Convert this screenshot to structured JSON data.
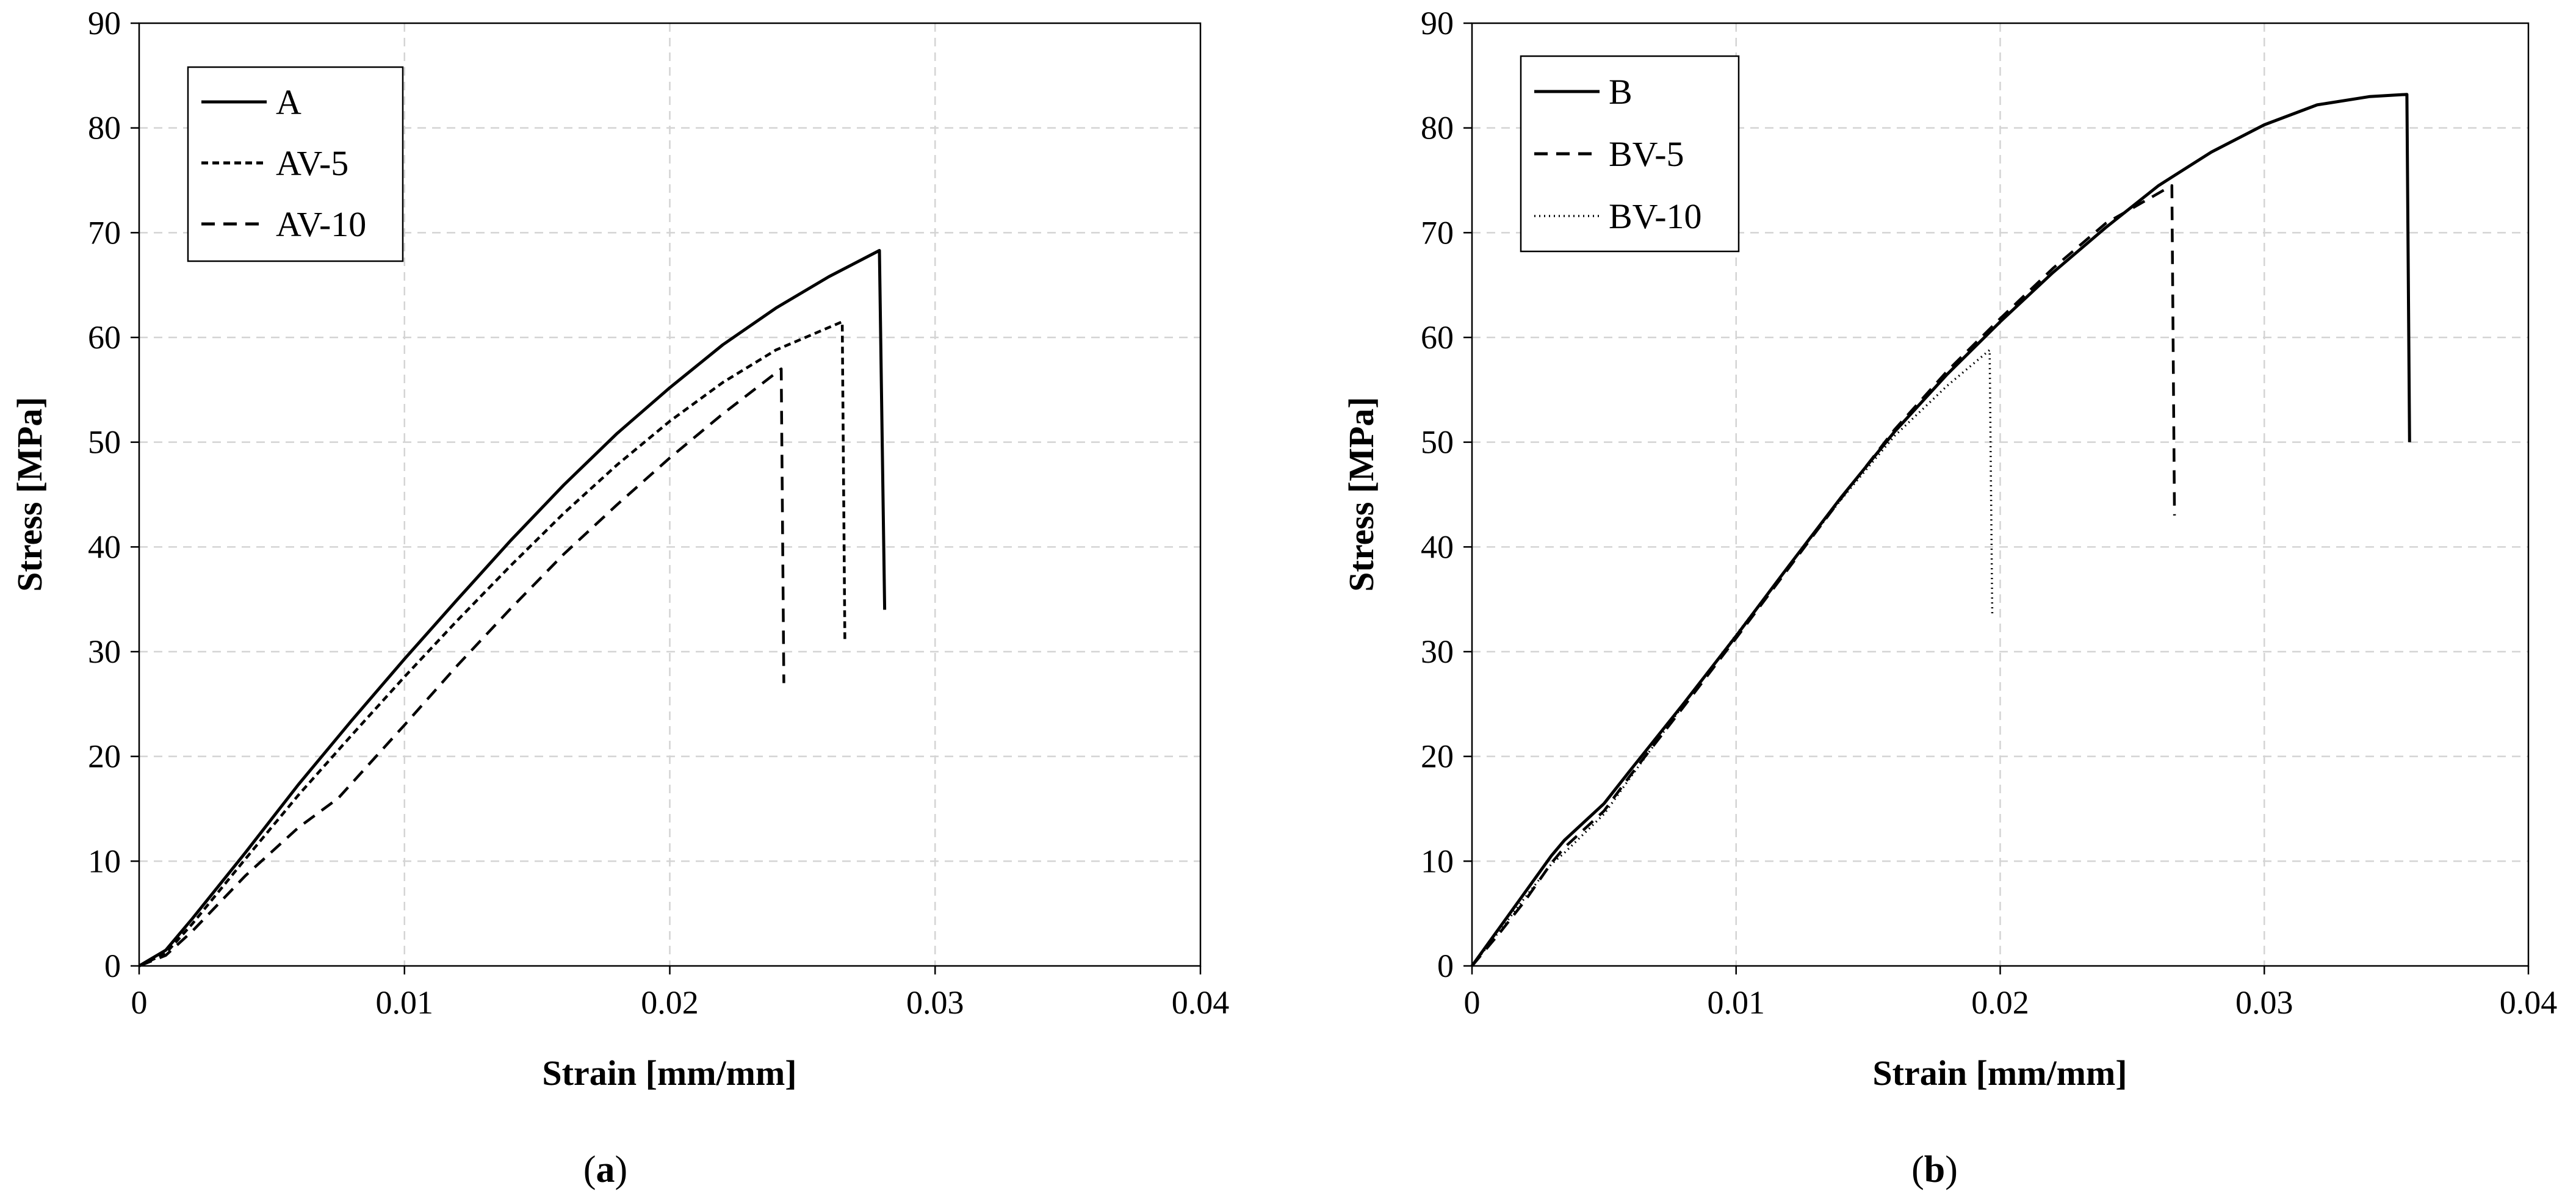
{
  "chart_data": [
    {
      "type": "line",
      "panel_label": {
        "open": "(",
        "letter": "a",
        "close": ")"
      },
      "xlabel": "Strain [mm/mm]",
      "ylabel": "Stress [MPa]",
      "xlim": [
        0,
        0.04
      ],
      "ylim": [
        0,
        90
      ],
      "x_ticks": [
        "0",
        "0.01",
        "0.02",
        "0.03",
        "0.04"
      ],
      "y_ticks": [
        "0",
        "10",
        "20",
        "30",
        "40",
        "50",
        "60",
        "70",
        "80",
        "90"
      ],
      "grid": true,
      "legend_position": "top-left",
      "series": [
        {
          "name": "A",
          "style": "solid",
          "x": [
            0,
            0.001,
            0.002,
            0.004,
            0.006,
            0.008,
            0.01,
            0.012,
            0.014,
            0.016,
            0.018,
            0.02,
            0.022,
            0.024,
            0.026,
            0.0279,
            0.0281
          ],
          "y": [
            0,
            1.5,
            4.5,
            10.8,
            17.3,
            23.4,
            29.3,
            35.0,
            40.6,
            45.9,
            50.8,
            55.2,
            59.3,
            62.8,
            65.8,
            68.3,
            34
          ]
        },
        {
          "name": "AV-5",
          "style": "short-dash",
          "x": [
            0,
            0.001,
            0.002,
            0.004,
            0.006,
            0.008,
            0.01,
            0.012,
            0.014,
            0.016,
            0.018,
            0.02,
            0.022,
            0.024,
            0.0265,
            0.0266
          ],
          "y": [
            0,
            1.2,
            4.0,
            10.2,
            16.3,
            22.0,
            27.6,
            33.0,
            38.2,
            43.2,
            47.8,
            52.0,
            55.7,
            58.8,
            61.5,
            31
          ]
        },
        {
          "name": "AV-10",
          "style": "long-dash",
          "x": [
            0,
            0.001,
            0.002,
            0.004,
            0.006,
            0.0075,
            0.01,
            0.012,
            0.014,
            0.016,
            0.018,
            0.02,
            0.022,
            0.0242,
            0.0243
          ],
          "y": [
            0,
            1.0,
            3.3,
            8.6,
            13.2,
            16.0,
            23.0,
            28.7,
            34.1,
            39.3,
            44.0,
            48.5,
            52.7,
            57.0,
            27
          ]
        }
      ]
    },
    {
      "type": "line",
      "panel_label": {
        "open": "(",
        "letter": "b",
        "close": ")"
      },
      "xlabel": "Strain [mm/mm]",
      "ylabel": "Stress [MPa]",
      "xlim": [
        0,
        0.04
      ],
      "ylim": [
        0,
        90
      ],
      "x_ticks": [
        "0",
        "0.01",
        "0.02",
        "0.03",
        "0.04"
      ],
      "y_ticks": [
        "0",
        "10",
        "20",
        "30",
        "40",
        "50",
        "60",
        "70",
        "80",
        "90"
      ],
      "grid": true,
      "legend_position": "top-left",
      "series": [
        {
          "name": "B",
          "style": "solid",
          "x": [
            0,
            0.001,
            0.002,
            0.003,
            0.0035,
            0.005,
            0.006,
            0.008,
            0.01,
            0.012,
            0.014,
            0.016,
            0.018,
            0.02,
            0.022,
            0.024,
            0.026,
            0.028,
            0.03,
            0.032,
            0.034,
            0.0354,
            0.0355
          ],
          "y": [
            0,
            3.5,
            7.0,
            10.5,
            12.0,
            15.5,
            18.7,
            25.0,
            31.5,
            38.2,
            44.8,
            51.0,
            56.5,
            61.5,
            66.2,
            70.5,
            74.5,
            77.7,
            80.3,
            82.2,
            83.0,
            83.2,
            50
          ]
        },
        {
          "name": "BV-5",
          "style": "long-dash",
          "x": [
            0,
            0.001,
            0.002,
            0.003,
            0.0035,
            0.005,
            0.006,
            0.008,
            0.01,
            0.012,
            0.014,
            0.016,
            0.018,
            0.02,
            0.022,
            0.024,
            0.0265,
            0.0266
          ],
          "y": [
            0,
            3.0,
            6.2,
            9.8,
            11.3,
            14.8,
            18.2,
            24.7,
            31.3,
            38.0,
            44.7,
            51.2,
            56.8,
            61.8,
            66.6,
            70.9,
            74.5,
            43
          ]
        },
        {
          "name": "BV-10",
          "style": "dotted",
          "x": [
            0,
            0.001,
            0.002,
            0.003,
            0.0035,
            0.005,
            0.006,
            0.008,
            0.01,
            0.012,
            0.014,
            0.016,
            0.018,
            0.0196,
            0.0197
          ],
          "y": [
            0,
            3.2,
            6.5,
            9.7,
            10.8,
            14.5,
            18.0,
            24.9,
            31.6,
            38.2,
            44.6,
            50.6,
            55.4,
            58.8,
            33.5
          ]
        }
      ]
    }
  ]
}
